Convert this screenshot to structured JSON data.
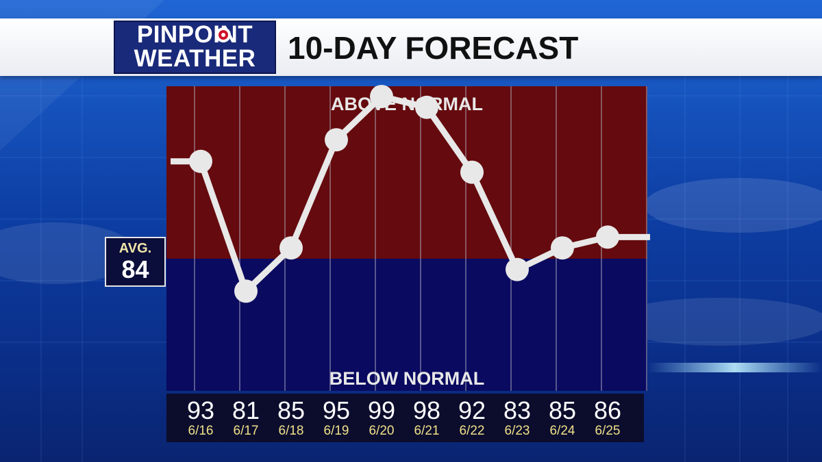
{
  "header": {
    "logo_line1": "PINPOINT",
    "logo_line2": "WEATHER",
    "title": "10-DAY FORECAST"
  },
  "average": {
    "label": "AVG.",
    "value": "84"
  },
  "zones": {
    "above_label": "ABOVE NORMAL",
    "below_label": "BELOW NORMAL"
  },
  "colors": {
    "above_fill": "#650a0e",
    "below_fill": "#0a0a60",
    "line": "#e8e8e8",
    "date_text": "#f0e08a",
    "logo_accent": "#d0102a"
  },
  "chart_data": {
    "type": "line",
    "average": 84,
    "categories": [
      "6/16",
      "6/17",
      "6/18",
      "6/19",
      "6/20",
      "6/21",
      "6/22",
      "6/23",
      "6/24",
      "6/25"
    ],
    "values": [
      93,
      81,
      85,
      95,
      99,
      98,
      92,
      83,
      85,
      86
    ],
    "ylim": [
      70,
      100
    ],
    "grid": true
  },
  "days": [
    {
      "temp": "93",
      "date": "6/16"
    },
    {
      "temp": "81",
      "date": "6/17"
    },
    {
      "temp": "85",
      "date": "6/18"
    },
    {
      "temp": "95",
      "date": "6/19"
    },
    {
      "temp": "99",
      "date": "6/20"
    },
    {
      "temp": "98",
      "date": "6/21"
    },
    {
      "temp": "92",
      "date": "6/22"
    },
    {
      "temp": "83",
      "date": "6/23"
    },
    {
      "temp": "85",
      "date": "6/24"
    },
    {
      "temp": "86",
      "date": "6/25"
    }
  ]
}
